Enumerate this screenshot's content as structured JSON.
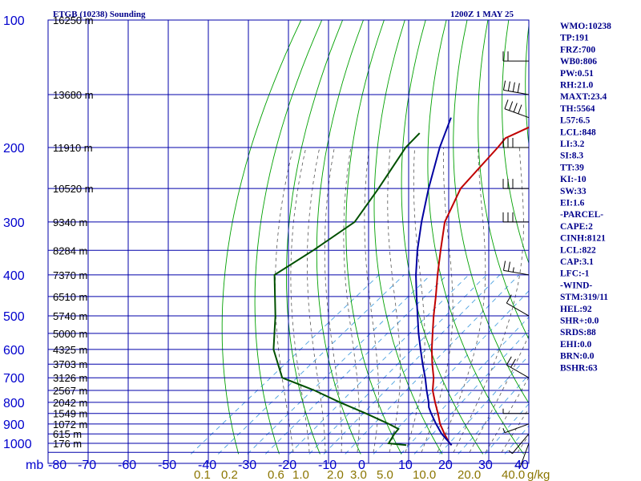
{
  "header": {
    "station": "ETGB (10238) Sounding",
    "valid_time": "1200Z  1 MAY 25"
  },
  "stats": [
    "WMO:10238",
    "TP:191",
    "FRZ:700",
    "WB0:806",
    "PW:0.51",
    "RH:21.0",
    "MAXT:23.4",
    "TH:5564",
    "L57:6.5",
    "LCL:848",
    "LI:3.2",
    "SI:8.3",
    "TT:39",
    "KI:-10",
    "SW:33",
    "EI:1.6",
    "-PARCEL-",
    "CAPE:2",
    "CINH:8121",
    "LCL:822",
    "CAP:3.1",
    "LFC:-1",
    "-WIND-",
    "STM:319/11",
    "HEL:92",
    "SHR+:0.0",
    "SRDS:88",
    "EHI:0.0",
    "BRN:0.0",
    "BSHR:63"
  ],
  "colors": {
    "grid": "#0000aa",
    "dry_adiabat": "#00a000",
    "moist_adiabat": "#555555",
    "mixing_ratio": "#4aa0e0",
    "temperature": "#c00000",
    "dewpoint": "#005000",
    "parcel": "#0000a0",
    "wind_barb": "#000000"
  },
  "chart_data": {
    "type": "line",
    "title": "ETGB (10238) Sounding",
    "diagram": "skew-T log-P",
    "x_axis": {
      "unit_label": "mb",
      "ticks": [
        "-80",
        "-70",
        "-60",
        "-50",
        "-40",
        "-30",
        "-20",
        "-10",
        "0",
        "10",
        "20",
        "30",
        "40"
      ]
    },
    "y_axis": {
      "scale": "log",
      "ticks": [
        100,
        200,
        300,
        400,
        500,
        600,
        700,
        800,
        900,
        1000
      ],
      "ylim": [
        1050,
        100
      ]
    },
    "height_labels": [
      {
        "p": 100,
        "label": "16250 m"
      },
      {
        "p": 150,
        "label": "13680 m"
      },
      {
        "p": 200,
        "label": "11910 m"
      },
      {
        "p": 250,
        "label": "10520 m"
      },
      {
        "p": 300,
        "label": "9340 m"
      },
      {
        "p": 350,
        "label": "8284 m"
      },
      {
        "p": 400,
        "label": "7370 m"
      },
      {
        "p": 450,
        "label": "6510 m"
      },
      {
        "p": 500,
        "label": "5740 m"
      },
      {
        "p": 550,
        "label": "5000 m"
      },
      {
        "p": 600,
        "label": "4325 m"
      },
      {
        "p": 650,
        "label": "3703 m"
      },
      {
        "p": 700,
        "label": "3126 m"
      },
      {
        "p": 750,
        "label": "2567 m"
      },
      {
        "p": 800,
        "label": "2042 m"
      },
      {
        "p": 850,
        "label": "1549 m"
      },
      {
        "p": 900,
        "label": "1072 m"
      },
      {
        "p": 950,
        "label": "615 m"
      },
      {
        "p": 1000,
        "label": "176 m"
      }
    ],
    "mixing_ratio_labels": [
      "0.1",
      "0.2",
      "0.6",
      "1.0",
      "2.0",
      "3.0",
      "5.0",
      "10.0",
      "20.0",
      "40.0",
      "g/kg"
    ],
    "series": [
      {
        "key": "temperature",
        "points": [
          {
            "p": 1010,
            "t": 21.3
          },
          {
            "p": 1000,
            "t": 20.2
          },
          {
            "p": 950,
            "t": 16.0
          },
          {
            "p": 900,
            "t": 11.8
          },
          {
            "p": 850,
            "t": 8.0
          },
          {
            "p": 800,
            "t": 3.8
          },
          {
            "p": 750,
            "t": -0.5
          },
          {
            "p": 700,
            "t": -4.2
          },
          {
            "p": 650,
            "t": -8.8
          },
          {
            "p": 600,
            "t": -13.5
          },
          {
            "p": 550,
            "t": -18.3
          },
          {
            "p": 500,
            "t": -23.5
          },
          {
            "p": 450,
            "t": -29.0
          },
          {
            "p": 400,
            "t": -35.3
          },
          {
            "p": 350,
            "t": -42.2
          },
          {
            "p": 300,
            "t": -50.0
          },
          {
            "p": 250,
            "t": -56.5
          },
          {
            "p": 200,
            "t": -60.0
          },
          {
            "p": 190,
            "t": -61.0
          },
          {
            "p": 175,
            "t": -57.5
          },
          {
            "p": 150,
            "t": -52.0
          },
          {
            "p": 130,
            "t": -51.0
          },
          {
            "p": 100,
            "t": -54.5
          }
        ]
      },
      {
        "key": "dewpoint",
        "points": [
          {
            "p": 1010,
            "t": 10.0
          },
          {
            "p": 1000,
            "t": 5.0
          },
          {
            "p": 950,
            "t": 3.5
          },
          {
            "p": 925,
            "t": 3.0
          },
          {
            "p": 900,
            "t": -1.0
          },
          {
            "p": 850,
            "t": -10.0
          },
          {
            "p": 800,
            "t": -20.0
          },
          {
            "p": 750,
            "t": -30.0
          },
          {
            "p": 700,
            "t": -42.0
          },
          {
            "p": 600,
            "t": -53.0
          },
          {
            "p": 500,
            "t": -63.0
          },
          {
            "p": 400,
            "t": -76.0
          },
          {
            "p": 350,
            "t": -74.0
          },
          {
            "p": 300,
            "t": -72.5
          },
          {
            "p": 250,
            "t": -77.0
          },
          {
            "p": 200,
            "t": -83.0
          },
          {
            "p": 185,
            "t": -84.0
          }
        ]
      },
      {
        "key": "parcel",
        "points": [
          {
            "p": 1010,
            "t": 21.3
          },
          {
            "p": 950,
            "t": 15.3
          },
          {
            "p": 900,
            "t": 10.8
          },
          {
            "p": 850,
            "t": 6.3
          },
          {
            "p": 822,
            "t": 3.8
          },
          {
            "p": 800,
            "t": 2.2
          },
          {
            "p": 750,
            "t": -2.0
          },
          {
            "p": 700,
            "t": -6.3
          },
          {
            "p": 650,
            "t": -11.2
          },
          {
            "p": 600,
            "t": -16.3
          },
          {
            "p": 550,
            "t": -21.8
          },
          {
            "p": 500,
            "t": -27.5
          },
          {
            "p": 450,
            "t": -33.8
          },
          {
            "p": 400,
            "t": -40.7
          },
          {
            "p": 350,
            "t": -48.0
          },
          {
            "p": 300,
            "t": -55.8
          },
          {
            "p": 250,
            "t": -64.5
          },
          {
            "p": 200,
            "t": -74.5
          },
          {
            "p": 170,
            "t": -81.0
          }
        ]
      }
    ],
    "wind_barbs": [
      {
        "p": 1000,
        "dir": 200,
        "spd": 5
      },
      {
        "p": 950,
        "dir": 220,
        "spd": 5
      },
      {
        "p": 900,
        "dir": 250,
        "spd": 5
      },
      {
        "p": 850,
        "dir": 270,
        "spd": 5
      },
      {
        "p": 700,
        "dir": 300,
        "spd": 20
      },
      {
        "p": 500,
        "dir": 300,
        "spd": 10
      },
      {
        "p": 400,
        "dir": 280,
        "spd": 25
      },
      {
        "p": 300,
        "dir": 270,
        "spd": 30
      },
      {
        "p": 250,
        "dir": 270,
        "spd": 30
      },
      {
        "p": 200,
        "dir": 270,
        "spd": 30
      },
      {
        "p": 170,
        "dir": 290,
        "spd": 40
      },
      {
        "p": 150,
        "dir": 280,
        "spd": 40
      },
      {
        "p": 125,
        "dir": 270,
        "spd": 20
      }
    ]
  }
}
